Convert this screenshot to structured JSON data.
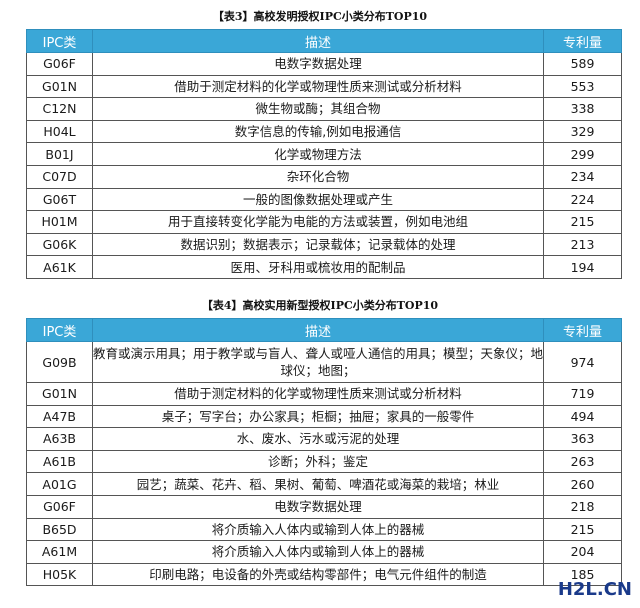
{
  "table3": {
    "caption": "【表3】高校发明授权IPC小类分布TOP10",
    "headers": [
      "IPC类",
      "描述",
      "专利量"
    ],
    "rows": [
      {
        "code": "G06F",
        "desc": "电数字数据处理",
        "count": "589"
      },
      {
        "code": "G01N",
        "desc": "借助于测定材料的化学或物理性质来测试或分析材料",
        "count": "553"
      },
      {
        "code": "C12N",
        "desc": "微生物或酶；其组合物",
        "count": "338"
      },
      {
        "code": "H04L",
        "desc": "数字信息的传输,例如电报通信",
        "count": "329"
      },
      {
        "code": "B01J",
        "desc": "化学或物理方法",
        "count": "299"
      },
      {
        "code": "C07D",
        "desc": "杂环化合物",
        "count": "234"
      },
      {
        "code": "G06T",
        "desc": "一般的图像数据处理或产生",
        "count": "224"
      },
      {
        "code": "H01M",
        "desc": "用于直接转变化学能为电能的方法或装置，例如电池组",
        "count": "215"
      },
      {
        "code": "G06K",
        "desc": "数据识别；数据表示；记录载体；记录载体的处理",
        "count": "213"
      },
      {
        "code": "A61K",
        "desc": "医用、牙科用或梳妆用的配制品",
        "count": "194"
      }
    ]
  },
  "table4": {
    "caption": "【表4】高校实用新型授权IPC小类分布TOP10",
    "headers": [
      "IPC类",
      "描述",
      "专利量"
    ],
    "rows": [
      {
        "code": "G09B",
        "desc": "教育或演示用具；用于教学或与盲人、聋人或哑人通信的用具；模型；天象仪；地球仪；地图；",
        "count": "974"
      },
      {
        "code": "G01N",
        "desc": "借助于测定材料的化学或物理性质来测试或分析材料",
        "count": "719"
      },
      {
        "code": "A47B",
        "desc": "桌子；写字台；办公家具；柜橱；抽屉；家具的一般零件",
        "count": "494"
      },
      {
        "code": "A63B",
        "desc": "水、废水、污水或污泥的处理",
        "count": "363"
      },
      {
        "code": "A61B",
        "desc": "诊断；外科；鉴定",
        "count": "263"
      },
      {
        "code": "A01G",
        "desc": "园艺；蔬菜、花卉、稻、果树、葡萄、啤酒花或海菜的栽培；林业",
        "count": "260"
      },
      {
        "code": "G06F",
        "desc": "电数字数据处理",
        "count": "218"
      },
      {
        "code": "B65D",
        "desc": "将介质输入人体内或输到人体上的器械",
        "count": "215"
      },
      {
        "code": "A61M",
        "desc": "将介质输入人体内或输到人体上的器械",
        "count": "204"
      },
      {
        "code": "H05K",
        "desc": "印刷电路；电设备的外壳或结构零部件；电气元件组件的制造",
        "count": "185"
      }
    ]
  },
  "watermark": {
    "text": "H2L.CN"
  },
  "colors": {
    "header_bg": "#3aa7d7",
    "header_text": "#ffffff",
    "border": "#555555"
  }
}
